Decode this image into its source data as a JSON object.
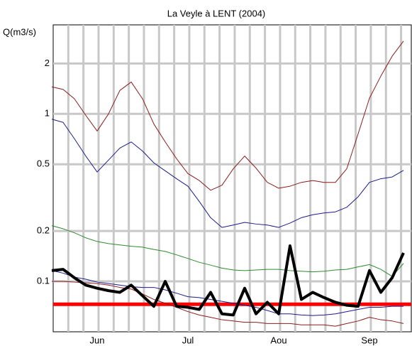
{
  "chart_data": {
    "type": "line",
    "title": "La Veyle à LENT (2004)",
    "y_label": "Q(m3/s)",
    "categories": [
      null,
      null,
      null,
      null,
      "Jun",
      null,
      null,
      null,
      null,
      null,
      null,
      null,
      "Jul",
      null,
      null,
      null,
      null,
      null,
      null,
      null,
      "Aou",
      null,
      null,
      null,
      null,
      null,
      null,
      null,
      "Sep",
      null,
      null,
      null
    ],
    "ylim": [
      0.05,
      3.4
    ],
    "yticks": [
      0.1,
      0.2,
      0.5,
      1,
      2
    ],
    "log_y": true,
    "grid": true,
    "reference_line": {
      "value": 0.073,
      "color": "#ff0000"
    },
    "series": [
      {
        "color": "#8b1c1c",
        "width": 1,
        "values": [
          1.45,
          1.4,
          1.23,
          0.98,
          0.79,
          1.0,
          1.38,
          1.55,
          1.23,
          0.87,
          0.68,
          0.54,
          0.44,
          0.4,
          0.35,
          0.375,
          0.47,
          0.56,
          0.475,
          0.39,
          0.36,
          0.37,
          0.39,
          0.4,
          0.39,
          0.39,
          0.47,
          0.76,
          1.24,
          1.68,
          2.21,
          2.72
        ]
      },
      {
        "color": "#1c1c8b",
        "width": 1,
        "values": [
          0.93,
          0.89,
          0.71,
          0.56,
          0.45,
          0.53,
          0.625,
          0.68,
          0.6,
          0.51,
          0.457,
          0.41,
          0.37,
          0.3,
          0.24,
          0.21,
          0.217,
          0.225,
          0.22,
          0.217,
          0.21,
          0.223,
          0.24,
          0.25,
          0.256,
          0.26,
          0.277,
          0.32,
          0.39,
          0.41,
          0.42,
          0.46
        ]
      },
      {
        "color": "#2e8b2e",
        "width": 1,
        "values": [
          0.215,
          0.206,
          0.195,
          0.182,
          0.173,
          0.168,
          0.165,
          0.162,
          0.16,
          0.155,
          0.151,
          0.144,
          0.137,
          0.13,
          0.125,
          0.12,
          0.117,
          0.116,
          0.117,
          0.118,
          0.118,
          0.116,
          0.115,
          0.114,
          0.115,
          0.117,
          0.118,
          0.122,
          0.126,
          0.118,
          0.107,
          0.128
        ]
      },
      {
        "color": "#1c1c8b",
        "width": 1,
        "values": [
          0.116,
          0.112,
          0.106,
          0.103,
          0.099,
          0.097,
          0.095,
          0.093,
          0.092,
          0.092,
          0.089,
          0.085,
          0.081,
          0.08,
          0.078,
          0.076,
          0.074,
          0.072,
          0.07,
          0.067,
          0.064,
          0.064,
          0.063,
          0.0625,
          0.063,
          0.064,
          0.066,
          0.068,
          0.07,
          0.07,
          0.071,
          0.071
        ]
      },
      {
        "color": "#8b1c1c",
        "width": 1,
        "values": [
          0.1,
          0.1,
          0.099,
          0.098,
          0.097,
          0.095,
          0.092,
          0.09,
          0.084,
          0.078,
          0.074,
          0.07,
          0.066,
          0.063,
          0.061,
          0.059,
          0.058,
          0.057,
          0.057,
          0.056,
          0.056,
          0.056,
          0.055,
          0.055,
          0.055,
          0.054,
          0.056,
          0.058,
          0.061,
          0.059,
          0.058,
          0.056
        ]
      },
      {
        "color": "#000000",
        "width": 4,
        "values": [
          0.116,
          0.118,
          0.105,
          0.095,
          0.091,
          0.088,
          0.086,
          0.095,
          0.082,
          0.071,
          0.1,
          0.071,
          0.07,
          0.068,
          0.086,
          0.064,
          0.063,
          0.091,
          0.064,
          0.075,
          0.064,
          0.163,
          0.078,
          0.086,
          0.08,
          0.075,
          0.072,
          0.071,
          0.116,
          0.086,
          0.105,
          0.148
        ]
      }
    ]
  }
}
